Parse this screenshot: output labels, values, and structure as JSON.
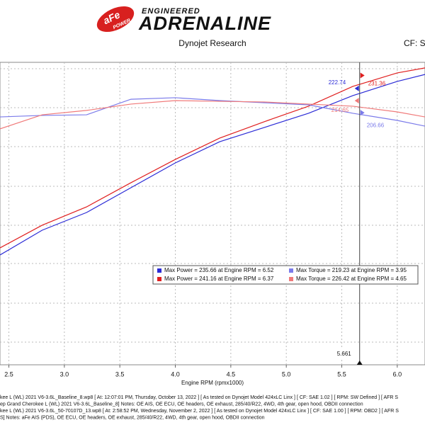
{
  "header": {
    "brand": "aFe",
    "brand_sub": "POWER",
    "tagline": "ENGINEERED",
    "slogan": "ADRENALINE"
  },
  "chart_data": {
    "type": "line",
    "title": "Dynojet Research",
    "corner_note": "CF: SA",
    "x_label": "Engine RPM (rpmx1000)",
    "x": [
      2.42,
      2.8,
      3.2,
      3.6,
      4.0,
      4.4,
      4.8,
      5.2,
      5.6,
      6.0,
      6.25
    ],
    "xlim": [
      2.42,
      6.25
    ],
    "xticks": [
      2.5,
      {
        "value": 3,
        "label": "3.0"
      },
      3.5,
      {
        "value": 4,
        "label": "4.0"
      },
      4.5,
      {
        "value": 5,
        "label": "5.0"
      },
      5.5,
      {
        "value": 6,
        "label": "6.0"
      }
    ],
    "ylim": [
      40,
      240
    ],
    "grid": true,
    "series": [
      {
        "name": "Max Power = 235.66 at Engine RPM = 6.52",
        "color": "#2b2bd6",
        "values": [
          112.6,
          129,
          140.7,
          157.1,
          173.5,
          187.5,
          196.9,
          206.3,
          218,
          227.4,
          232
        ]
      },
      {
        "name": "Max Power = 241.16 at Engine RPM = 6.37",
        "color": "#e01f1f",
        "values": [
          117.3,
          132.3,
          144.4,
          160.4,
          175.8,
          189.9,
          200.7,
          211,
          224.1,
          233,
          236.3
        ]
      },
      {
        "name": "Max Torque = 219.23 at Engine RPM = 3.95",
        "color": "#7b7bea",
        "values": [
          203.9,
          204.9,
          205.3,
          215.6,
          216.6,
          214.7,
          213.3,
          211.9,
          206.3,
          201.6,
          197.8
        ]
      },
      {
        "name": "Max Torque = 226.42 at Engine RPM = 4.65",
        "color": "#f07a7a",
        "values": [
          196,
          205.3,
          208.2,
          212.4,
          214.7,
          214.2,
          213.8,
          212.4,
          211,
          207.2,
          203.9
        ]
      }
    ],
    "cursor": {
      "x": 5.661,
      "readouts": [
        {
          "value": 222.74,
          "color": "#2b2bd6"
        },
        {
          "value": 231.36,
          "color": "#e01f1f"
        },
        {
          "value": 214.65,
          "color": "#f07a7a"
        },
        {
          "value": 206.66,
          "color": "#7b7bea"
        }
      ]
    }
  },
  "footer": [
    "kee L (WL) 2021 V6-3.6L_Baseline_8.wp8 [ At: 12:07:01 PM, Thursday, October 13, 2022 ] [ As tested on Dynojet Model 424xLC Linx ] [ CF: SAE 1.02 ] [ RPM: SW Defined ] [ AFR S",
    "ep Grand Cherokee L (WL) 2021 V6-3.6L_Baseline_8]  Notes: OE AIS, OE ECU, OE headers, OE exhaust, 285/40/R22, 4WD, 4th gear, open hood, OBDII connection",
    "kee L (WL) 2021 V6-3.6L_50-70107D_13.wp8 [ At: 2:58:52 PM, Wednesday, November 2, 2022 ] [ As tested on Dynojet Model 424xLC Linx ] [ CF: SAE 1.00 ] [ RPM: OBD2 ] [ AFR S",
    "S]  Notes: aFe AIS (PDS), OE ECU, OE headers, OE exhaust, 285/40/R22, 4WD, 4th gear, open hood, OBDII connection"
  ]
}
